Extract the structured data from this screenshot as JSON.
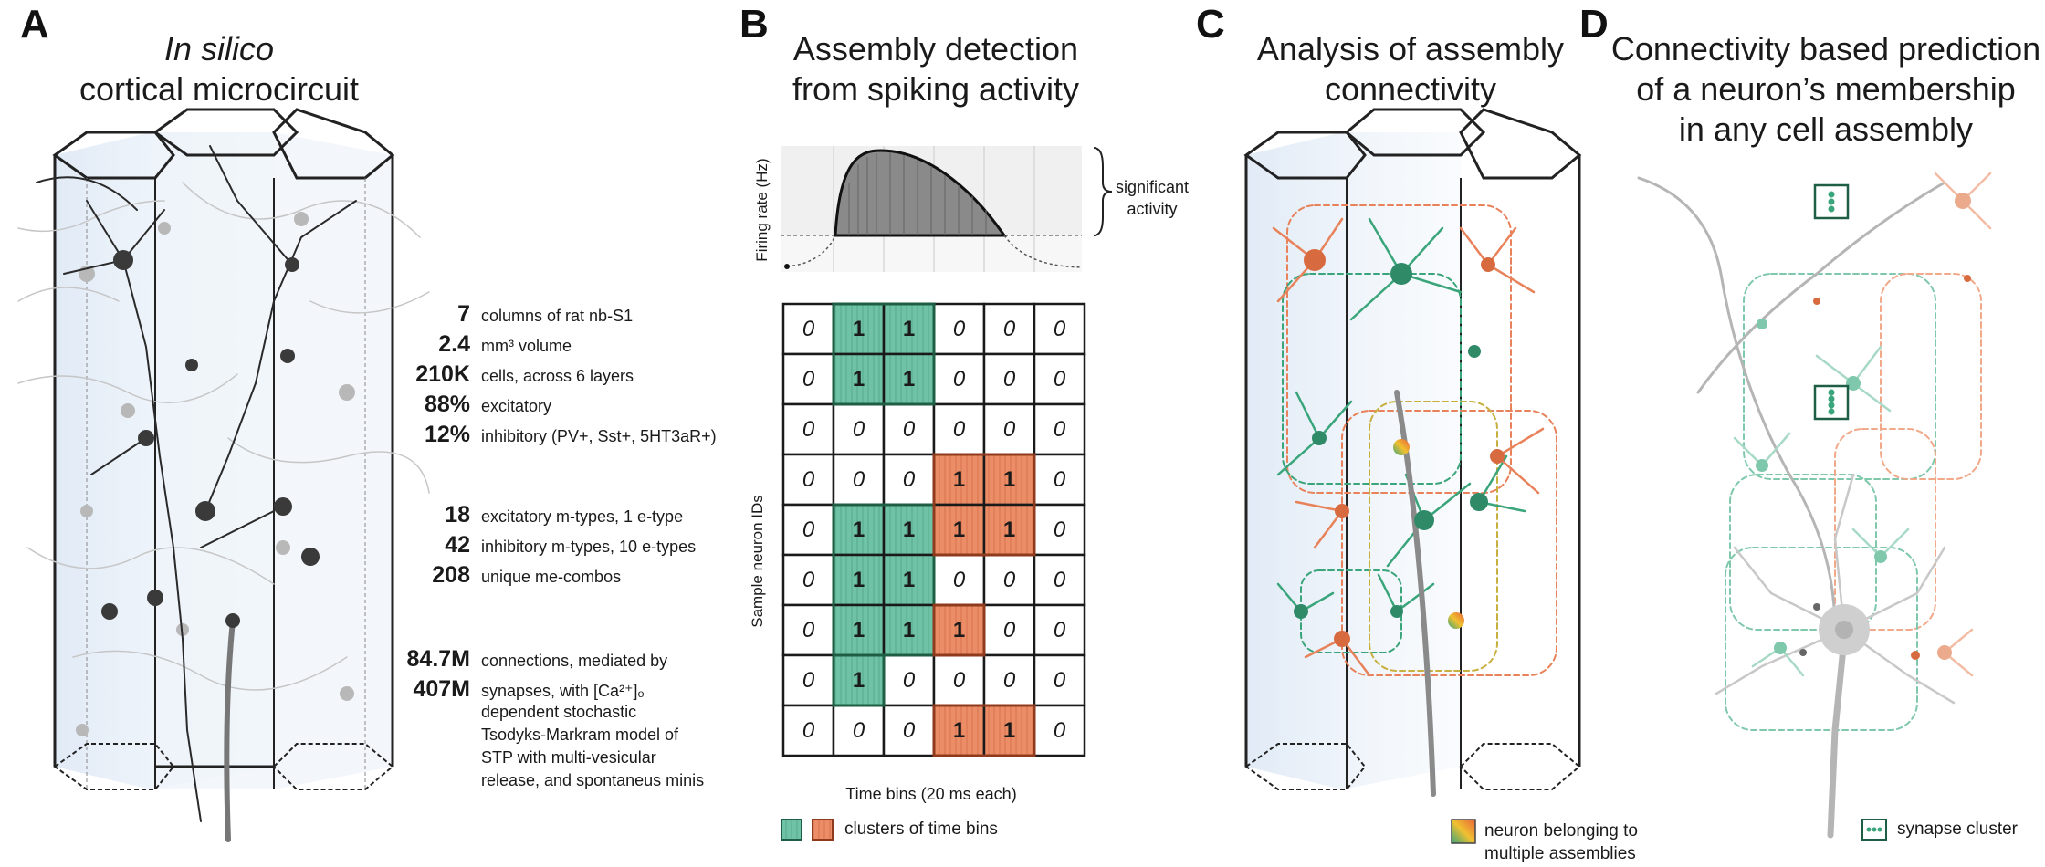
{
  "panels": {
    "A": {
      "letter": "A",
      "title_line1": "In silico",
      "title_line2": "cortical microcircuit"
    },
    "B": {
      "letter": "B",
      "title_line1": "Assembly detection",
      "title_line2": "from spiking activity"
    },
    "C": {
      "letter": "C",
      "title_line1": "Analysis of assembly",
      "title_line2": "connectivity"
    },
    "D": {
      "letter": "D",
      "title_line1": "Connectivity based prediction",
      "title_line2": "of a neuron’s membership",
      "title_line3": "in any cell assembly"
    }
  },
  "stats": [
    {
      "value": "7",
      "desc": "columns of rat nb-S1"
    },
    {
      "value": "2.4",
      "desc": "mm³ volume"
    },
    {
      "value": "210K",
      "desc": "cells, across 6 layers"
    },
    {
      "value": "88%",
      "desc": "excitatory"
    },
    {
      "value": "12%",
      "desc": "inhibitory (PV+, Sst+, 5HT3aR+)"
    },
    {
      "value": "18",
      "desc": "excitatory m-types, 1 e-type"
    },
    {
      "value": "42",
      "desc": "inhibitory m-types, 10 e-types"
    },
    {
      "value": "208",
      "desc": "unique me-combos"
    },
    {
      "value": "84.7M",
      "desc": "connections, mediated by"
    },
    {
      "value": "407M",
      "desc": "synapses, with [Ca²⁺]ₒ"
    }
  ],
  "synapse_note": [
    "dependent stochastic",
    "Tsodyks-Markram model of",
    "STP with multi-vesicular",
    "release, and spontaneus minis"
  ],
  "firing": {
    "ylabel": "Firing rate (Hz)",
    "brace_label_1": "significant",
    "brace_label_2": "activity"
  },
  "raster": {
    "ylabel": "Sample neuron IDs",
    "xlabel": "Time bins (20 ms each)",
    "legend": "clusters of time bins",
    "rows": [
      [
        0,
        1,
        1,
        0,
        0,
        0
      ],
      [
        0,
        1,
        1,
        0,
        0,
        0
      ],
      [
        0,
        0,
        0,
        0,
        0,
        0
      ],
      [
        0,
        0,
        0,
        1,
        1,
        0
      ],
      [
        0,
        1,
        1,
        1,
        1,
        0
      ],
      [
        0,
        1,
        1,
        0,
        0,
        0
      ],
      [
        0,
        1,
        1,
        1,
        0,
        0
      ],
      [
        0,
        1,
        0,
        0,
        0,
        0
      ],
      [
        0,
        0,
        0,
        1,
        1,
        0
      ]
    ],
    "clusters": [
      [
        0,
        1,
        1,
        0,
        0,
        0
      ],
      [
        0,
        1,
        1,
        0,
        0,
        0
      ],
      [
        0,
        0,
        0,
        0,
        0,
        0
      ],
      [
        0,
        0,
        0,
        2,
        2,
        0
      ],
      [
        0,
        1,
        1,
        2,
        2,
        0
      ],
      [
        0,
        1,
        1,
        0,
        0,
        0
      ],
      [
        0,
        1,
        1,
        2,
        0,
        0
      ],
      [
        0,
        1,
        0,
        0,
        0,
        0
      ],
      [
        0,
        0,
        0,
        2,
        2,
        0
      ]
    ]
  },
  "legend_C": [
    "neuron belonging to",
    "multiple assemblies"
  ],
  "legend_D": "synapse cluster",
  "colors": {
    "green": "#5fb89a",
    "green_dark": "#2f8a68",
    "orange": "#e8825a",
    "orange_dark": "#c65b33",
    "gray": "#9a9a9a"
  }
}
